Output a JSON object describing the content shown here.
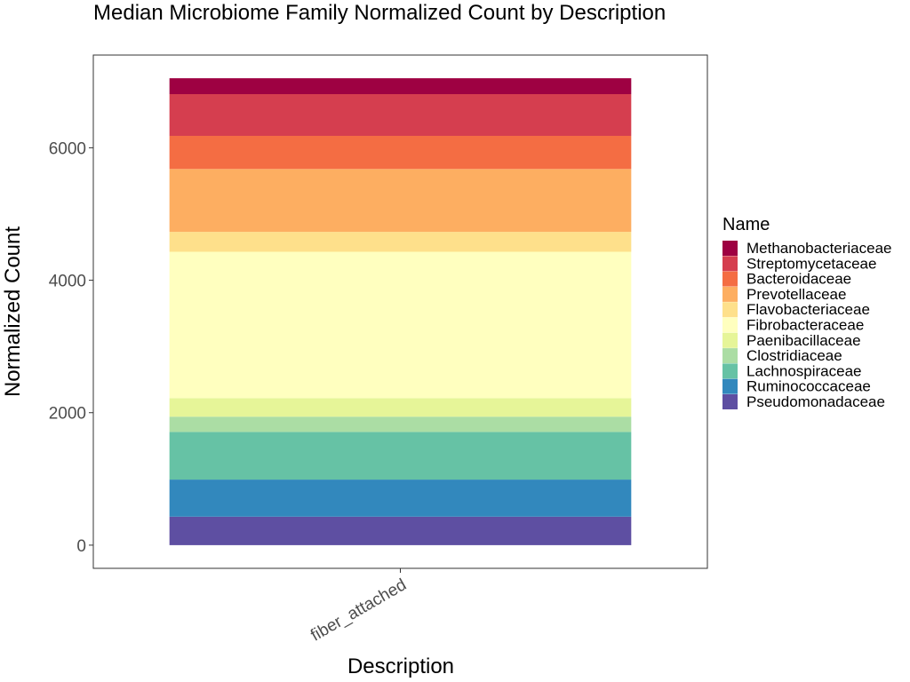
{
  "chart_data": {
    "type": "bar",
    "stacked": true,
    "title": "Median Microbiome Family Normalized Count by Description",
    "xlabel": "Description",
    "ylabel": "Normalized Count",
    "categories": [
      "fiber_attached"
    ],
    "ylim": [
      -350,
      7400
    ],
    "yticks": [
      0,
      2000,
      4000,
      6000
    ],
    "grid": false,
    "legend": {
      "title": "Name",
      "placement": "right"
    },
    "series": [
      {
        "name": "Pseudomonadaceae",
        "values": [
          430
        ],
        "color": "#5E4FA2"
      },
      {
        "name": "Ruminococcaceae",
        "values": [
          560
        ],
        "color": "#3288BD"
      },
      {
        "name": "Lachnospiraceae",
        "values": [
          720
        ],
        "color": "#66C2A5"
      },
      {
        "name": "Clostridiaceae",
        "values": [
          230
        ],
        "color": "#ABDDA4"
      },
      {
        "name": "Paenibacillaceae",
        "values": [
          280
        ],
        "color": "#E6F598"
      },
      {
        "name": "Fibrobacteraceae",
        "values": [
          2210
        ],
        "color": "#FFFFBF"
      },
      {
        "name": "Flavobacteriaceae",
        "values": [
          300
        ],
        "color": "#FEE08B"
      },
      {
        "name": "Prevotellaceae",
        "values": [
          950
        ],
        "color": "#FDAE61"
      },
      {
        "name": "Bacteroidaceae",
        "values": [
          500
        ],
        "color": "#F46D43"
      },
      {
        "name": "Streptomycetaceae",
        "values": [
          630
        ],
        "color": "#D53E4F"
      },
      {
        "name": "Methanobacteriaceae",
        "values": [
          240
        ],
        "color": "#9E0142"
      }
    ]
  }
}
